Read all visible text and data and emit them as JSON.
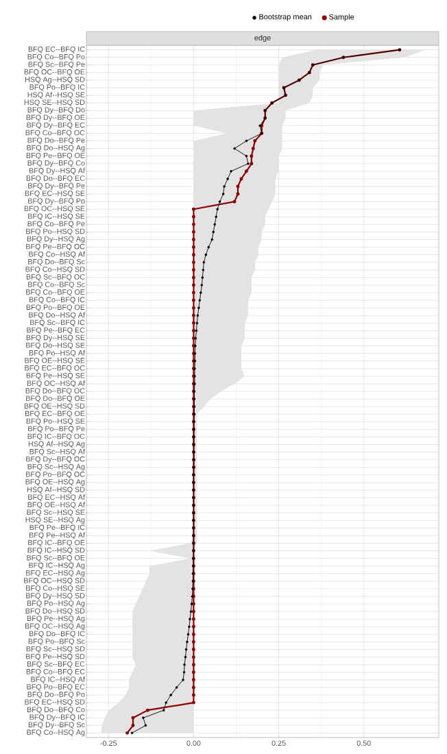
{
  "chart_data": {
    "type": "line",
    "orientation": "horizontal",
    "title": "edge",
    "categories": [
      "BFQ EC--BFQ IC",
      "BFQ Co--BFQ Po",
      "BFQ Sc--BFQ Pe",
      "BFQ OC--BFQ OE",
      "HSQ Ag--HSQ SD",
      "BFQ Po--BFQ IC",
      "HSQ Af--HSQ SE",
      "HSQ SE--HSQ SD",
      "BFQ Dy--BFQ Do",
      "BFQ Dy--BFQ OE",
      "BFQ Dy--BFQ EC",
      "BFQ Co--BFQ OC",
      "BFQ Do--BFQ Pe",
      "BFQ Do--HSQ Ag",
      "BFQ Pe--BFQ OE",
      "BFQ Dy--BFQ Co",
      "BFQ Dy--HSQ Af",
      "BFQ Do--BFQ EC",
      "BFQ Dy--BFQ Pe",
      "BFQ EC--HSQ SE",
      "BFQ Dy--BFQ Po",
      "BFQ OC--HSQ SE",
      "BFQ IC--HSQ SE",
      "BFQ Co--BFQ Pe",
      "BFQ Po--HSQ SD",
      "BFQ Dy--HSQ Ag",
      "BFQ Pe--BFQ OC",
      "BFQ Co--HSQ Af",
      "BFQ Do--BFQ Sc",
      "BFQ Co--HSQ SD",
      "BFQ Sc--BFQ OC",
      "BFQ Co--BFQ Sc",
      "BFQ Co--BFQ OE",
      "BFQ Co--BFQ IC",
      "BFQ Po--BFQ OE",
      "BFQ Do--HSQ Af",
      "BFQ Sc--BFQ IC",
      "BFQ Pe--BFQ EC",
      "BFQ Dy--HSQ SE",
      "BFQ Do--HSQ SE",
      "BFQ Po--HSQ Af",
      "BFQ OE--HSQ SE",
      "BFQ EC--BFQ OC",
      "BFQ Pe--HSQ SE",
      "BFQ OC--HSQ Af",
      "BFQ Do--BFQ OC",
      "BFQ Do--BFQ OE",
      "BFQ OE--HSQ SD",
      "BFQ EC--BFQ OE",
      "BFQ Po--HSQ SE",
      "BFQ Po--BFQ Pe",
      "BFQ IC--BFQ OC",
      "HSQ Af--HSQ Ag",
      "BFQ Sc--HSQ Af",
      "BFQ Dy--BFQ OC",
      "BFQ Sc--HSQ Ag",
      "BFQ Po--BFQ OC",
      "BFQ OE--HSQ Ag",
      "HSQ Af--HSQ SD",
      "BFQ EC--HSQ Af",
      "BFQ OE--HSQ Af",
      "BFQ Sc--HSQ SE",
      "HSQ SE--HSQ Ag",
      "BFQ Pe--BFQ IC",
      "BFQ Pe--HSQ Af",
      "BFQ IC--BFQ OE",
      "BFQ IC--HSQ SD",
      "BFQ Sc--BFQ OE",
      "BFQ IC--HSQ Ag",
      "BFQ EC--HSQ Ag",
      "BFQ OC--HSQ SD",
      "BFQ Co--HSQ SE",
      "BFQ Dy--HSQ SD",
      "BFQ Po--HSQ Ag",
      "BFQ Do--HSQ SD",
      "BFQ Pe--HSQ Ag",
      "BFQ OC--HSQ Ag",
      "BFQ Do--BFQ IC",
      "BFQ Po--BFQ Sc",
      "BFQ Sc--HSQ SD",
      "BFQ Pe--HSQ SD",
      "BFQ Sc--BFQ EC",
      "BFQ Co--BFQ EC",
      "BFQ IC--HSQ Af",
      "BFQ Po--BFQ EC",
      "BFQ Do--BFQ Po",
      "BFQ EC--HSQ SD",
      "BFQ Do--BFQ Co",
      "BFQ Dy--BFQ IC",
      "BFQ Dy--BFQ Sc",
      "BFQ Co--HSQ Ag"
    ],
    "series": [
      {
        "name": "Bootstrap mean",
        "color": "#000000",
        "values": [
          0.605,
          0.44,
          0.35,
          0.34,
          0.31,
          0.265,
          0.27,
          0.23,
          0.21,
          0.21,
          0.195,
          0.2,
          0.155,
          0.12,
          0.155,
          0.16,
          0.11,
          0.1,
          0.09,
          0.087,
          0.077,
          0.07,
          0.066,
          0.062,
          0.058,
          0.054,
          0.044,
          0.036,
          0.03,
          0.028,
          0.026,
          0.024,
          0.021,
          0.018,
          0.015,
          0.012,
          0.01,
          0.008,
          0.006,
          0.005,
          0.004,
          0.004,
          0.003,
          0.003,
          0.003,
          0.002,
          0.002,
          0.002,
          0.002,
          0.001,
          0.001,
          0.001,
          0.001,
          0.001,
          0.001,
          0.001,
          0,
          0,
          0,
          0,
          0,
          0,
          0,
          0,
          0,
          0,
          0,
          -0.001,
          -0.001,
          -0.002,
          -0.002,
          -0.003,
          -0.004,
          -0.006,
          -0.008,
          -0.011,
          -0.013,
          -0.016,
          -0.019,
          -0.022,
          -0.024,
          -0.027,
          -0.028,
          -0.031,
          -0.05,
          -0.067,
          -0.081,
          -0.088,
          -0.148,
          -0.141,
          -0.181
        ],
        "lower": [
          0.36,
          0.26,
          0.25,
          0.25,
          0.25,
          0.25,
          0.25,
          0.25,
          0,
          0,
          0,
          0.1,
          0,
          0,
          0,
          0,
          0,
          0,
          0,
          0,
          0,
          0,
          0,
          0,
          0,
          0,
          0,
          0,
          0,
          0,
          0,
          0,
          0,
          0,
          0,
          0,
          0,
          0,
          0,
          0,
          0,
          0,
          0,
          0,
          0,
          0,
          0,
          0,
          0,
          0,
          0,
          0,
          0,
          0,
          0,
          0,
          0,
          0,
          0,
          0,
          0,
          0,
          0,
          0,
          0,
          -0.01,
          -0.13,
          -0.01,
          -0.13,
          -0.13,
          -0.14,
          -0.15,
          -0.16,
          -0.17,
          -0.18,
          -0.18,
          -0.18,
          -0.18,
          -0.18,
          -0.18,
          -0.18,
          -0.17,
          -0.18,
          -0.19,
          -0.19,
          -0.2,
          -0.22,
          -0.25,
          -0.26,
          -0.27,
          -0.27
        ],
        "upper": [
          0.68,
          0.62,
          0.38,
          0.37,
          0.37,
          0.35,
          0.35,
          0.34,
          0.27,
          0.27,
          0.26,
          0.26,
          0.26,
          0.26,
          0.25,
          0.25,
          0.25,
          0.24,
          0.24,
          0.24,
          0.23,
          0.22,
          0.21,
          0.21,
          0.2,
          0.2,
          0.19,
          0.19,
          0.18,
          0.18,
          0.17,
          0.17,
          0.17,
          0.16,
          0.16,
          0.16,
          0.15,
          0.15,
          0.15,
          0.14,
          0.14,
          0.14,
          0.14,
          0.15,
          0.12,
          0.08,
          0.05,
          0.03,
          0.01,
          0.01,
          0.01,
          0.01,
          0.01,
          0.01,
          0.01,
          0.01,
          0.01,
          0.01,
          0.01,
          0.01,
          0.01,
          0.01,
          0.01,
          0.01,
          0.01,
          0.01,
          0,
          0,
          0,
          0,
          0,
          0,
          0,
          0,
          0,
          0,
          0,
          0,
          0,
          0,
          0,
          0,
          0,
          0,
          0,
          0,
          0,
          0,
          0,
          0,
          0
        ]
      },
      {
        "name": "Sample",
        "color": "#8b0000",
        "values": [
          0.605,
          0.44,
          0.35,
          0.34,
          0.31,
          0.265,
          0.27,
          0.23,
          0.21,
          0.21,
          0.2,
          0.2,
          0.18,
          0.175,
          0.17,
          0.17,
          0.155,
          0.14,
          0.13,
          0.13,
          0.12,
          0,
          0,
          0,
          0,
          0,
          0,
          0,
          0,
          0,
          0,
          0,
          0,
          0,
          0,
          0,
          0,
          0,
          0,
          0,
          0,
          0,
          0,
          0,
          0,
          0,
          0,
          0,
          0,
          0,
          0,
          0,
          0,
          0,
          0,
          0,
          0,
          0,
          0,
          0,
          0,
          0,
          0,
          0,
          0,
          0,
          0,
          0,
          0,
          0,
          0,
          0,
          0,
          0,
          0,
          0,
          0,
          0,
          0,
          0,
          0,
          0,
          0,
          0,
          0,
          0,
          0,
          -0.135,
          -0.178,
          -0.178,
          -0.195
        ]
      }
    ],
    "xlim": [
      -0.315,
      0.72
    ],
    "xticks": [
      {
        "value": -0.25,
        "label": "-0.25"
      },
      {
        "value": 0,
        "label": "0.00"
      },
      {
        "value": 0.25,
        "label": "0.25"
      },
      {
        "value": 0.5,
        "label": "0.50"
      }
    ],
    "grid": true,
    "legend": "top",
    "marker": "circle",
    "line_style": "solid"
  }
}
